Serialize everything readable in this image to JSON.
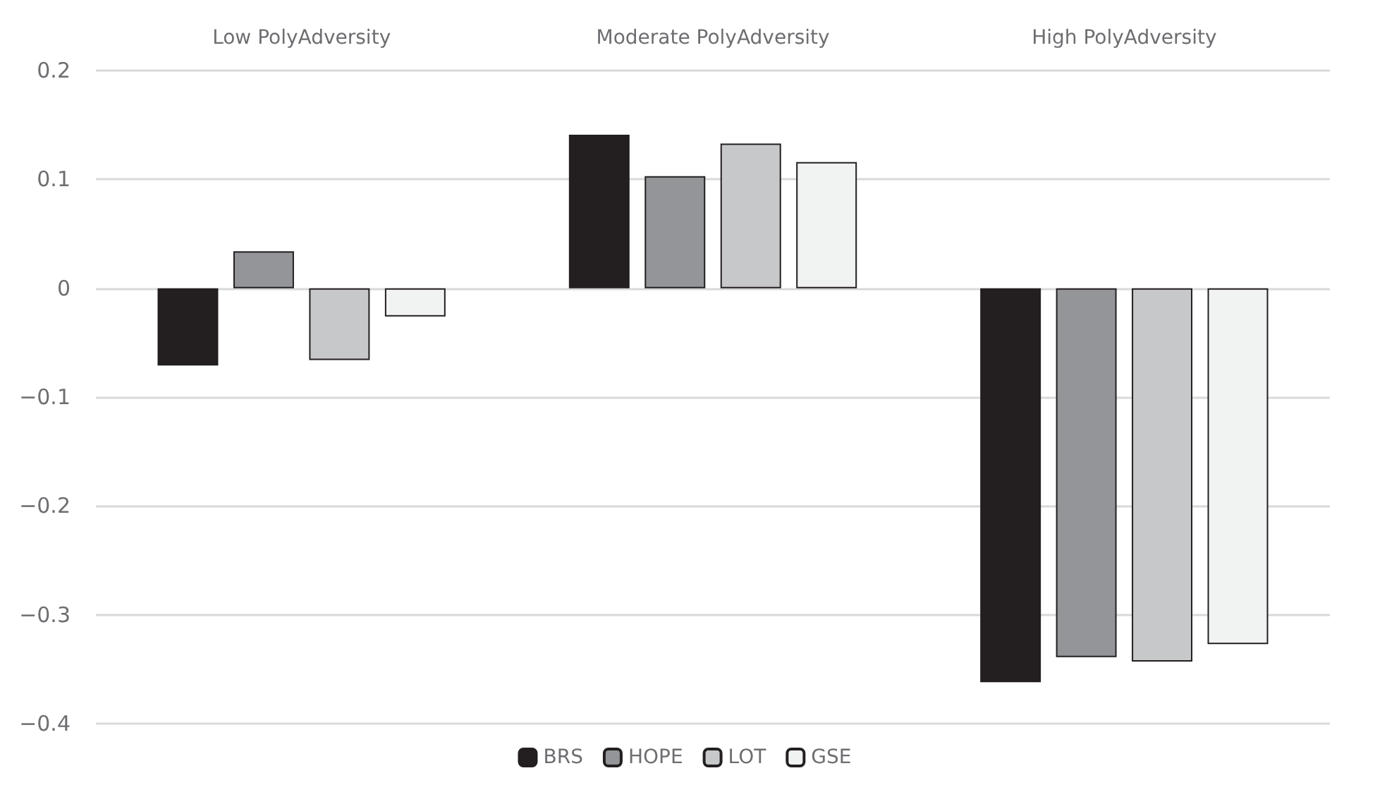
{
  "chart_data": {
    "type": "bar",
    "categories": [
      "Low PolyAdversity",
      "Moderate PolyAdversity",
      "High PolyAdversity"
    ],
    "series": [
      {
        "name": "BRS",
        "color": "#231f20",
        "values": [
          -0.071,
          0.141,
          -0.362
        ]
      },
      {
        "name": "HOPE",
        "color": "#939598",
        "values": [
          0.034,
          0.103,
          -0.339
        ]
      },
      {
        "name": "LOT",
        "color": "#c7c8ca",
        "values": [
          -0.066,
          0.133,
          -0.343
        ]
      },
      {
        "name": "GSE",
        "color": "#f1f2f2",
        "values": [
          -0.026,
          0.116,
          -0.327
        ]
      }
    ],
    "ylim": [
      -0.4,
      0.2
    ],
    "yticks": [
      {
        "value": -0.4,
        "label": "−0.4"
      },
      {
        "value": -0.3,
        "label": "−0.3"
      },
      {
        "value": -0.2,
        "label": "−0.2"
      },
      {
        "value": -0.1,
        "label": "−0.1"
      },
      0,
      0.1,
      0.2
    ],
    "grid": "y",
    "legend": "bottom"
  }
}
